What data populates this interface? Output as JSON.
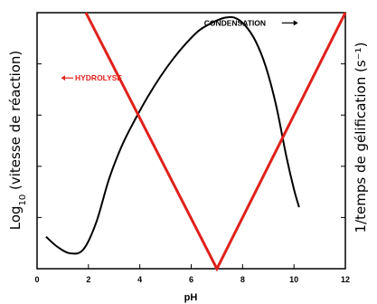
{
  "chart_data": {
    "type": "line",
    "xlabel": "pH",
    "ylabel_left_main": "Log",
    "ylabel_left_sub": "10",
    "ylabel_left_rest": " (vitesse de réaction)",
    "ylabel_right": "1/temps de gélification (s⁻¹)",
    "xlim": [
      0,
      12
    ],
    "ylim": [
      0,
      10
    ],
    "x_ticks": [
      0,
      2,
      4,
      6,
      8,
      10,
      12
    ],
    "x_tick_labels": [
      "0",
      "2",
      "4",
      "6",
      "8",
      "10",
      "12"
    ],
    "y_ticks": [
      0,
      2,
      4,
      6,
      8
    ],
    "y_tick_labels": [],
    "grid": false,
    "series": [
      {
        "name": "",
        "color": "#000000",
        "x": [
          0.35,
          0.8,
          1.3,
          1.8,
          2.3,
          2.8,
          3.3,
          3.8,
          4.3,
          4.8,
          5.3,
          5.8,
          6.3,
          6.8,
          7.3,
          7.7,
          8.1,
          8.5,
          8.9,
          9.3,
          9.7,
          10.0,
          10.2
        ],
        "y": [
          1.25,
          0.85,
          0.6,
          0.75,
          1.8,
          3.5,
          4.8,
          5.8,
          6.7,
          7.5,
          8.2,
          8.8,
          9.3,
          9.6,
          9.8,
          9.8,
          9.5,
          8.9,
          7.9,
          6.4,
          4.4,
          3.1,
          2.4
        ]
      },
      {
        "name": "",
        "color": "#e0201b",
        "x": [
          1.9,
          7.0,
          12.0
        ],
        "y": [
          10.0,
          0.0,
          10.0
        ]
      }
    ],
    "annotations": [
      {
        "text": "HYDROLYSE",
        "color": "#e0201b",
        "x": 0.95,
        "y": 7.45,
        "arrow": "left"
      },
      {
        "text": "CONDENSATION",
        "color": "#000000",
        "x": 6.5,
        "y": 9.6,
        "arrow": "right"
      }
    ]
  }
}
